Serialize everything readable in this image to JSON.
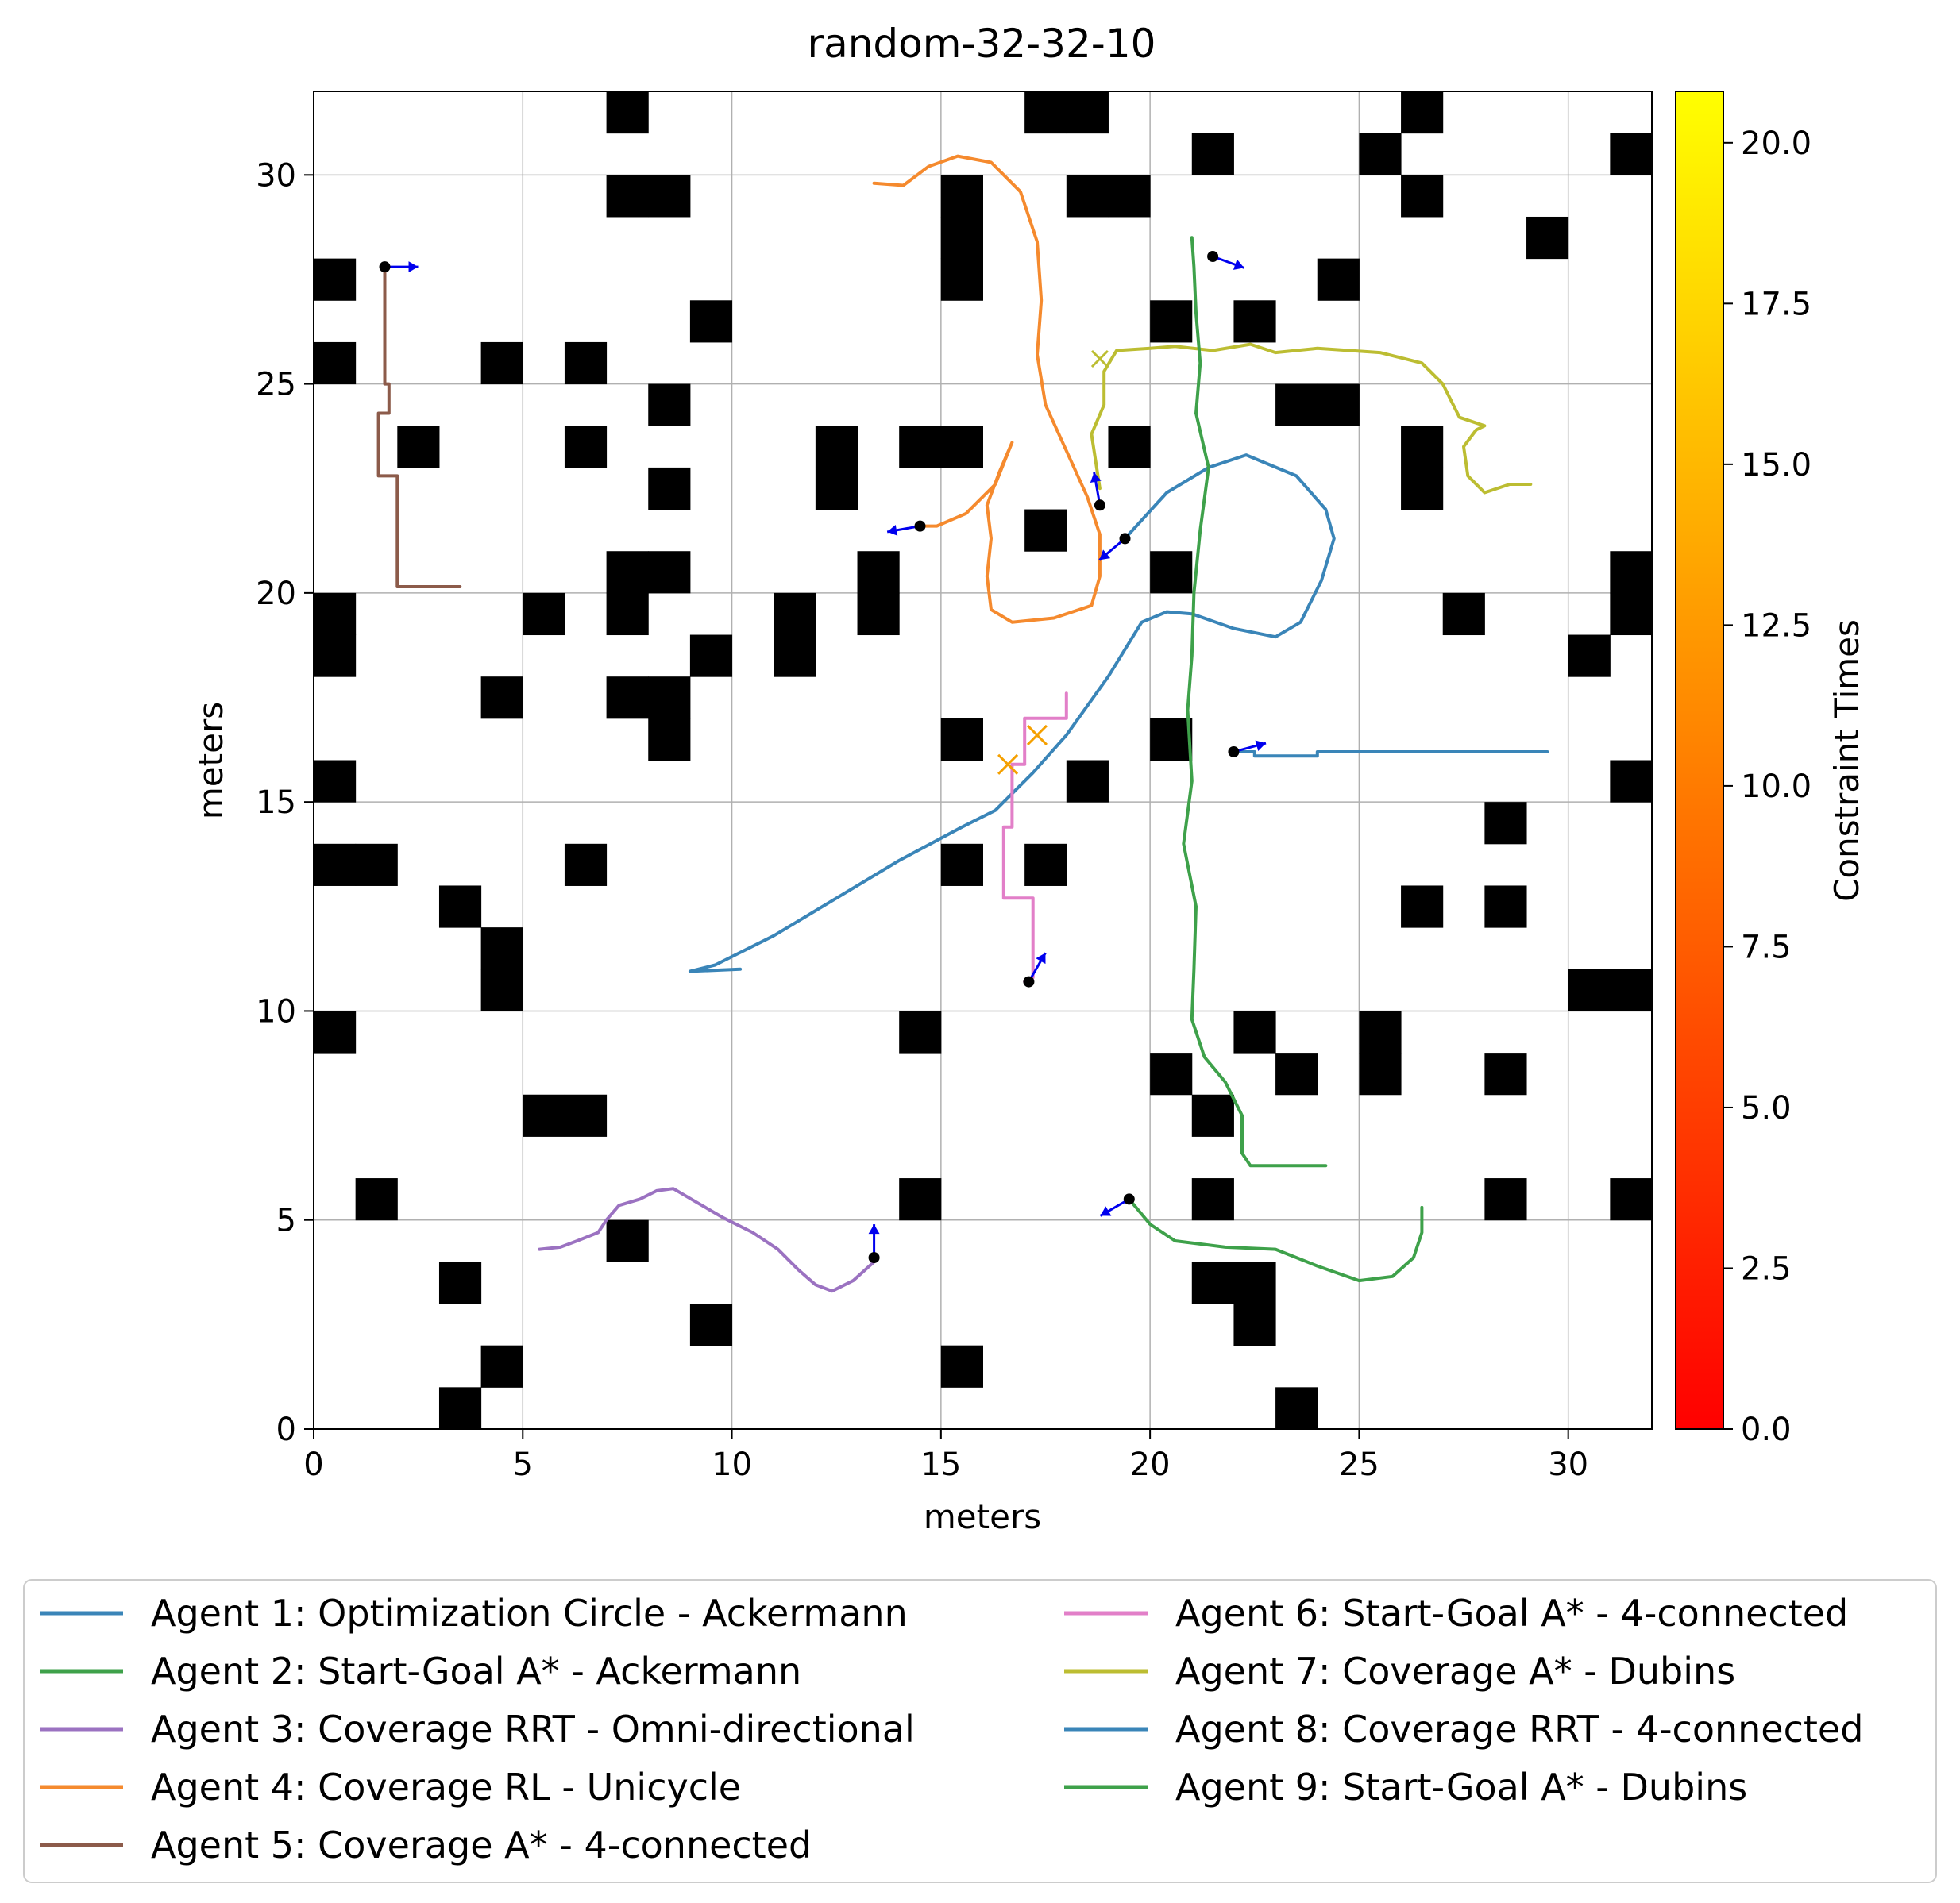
{
  "chart_data": {
    "type": "scatter",
    "title": "random-32-32-10",
    "xlabel": "meters",
    "ylabel": "meters",
    "xlim": [
      0,
      32
    ],
    "ylim": [
      0,
      32
    ],
    "grid": true,
    "x_ticks": [
      0,
      5,
      10,
      15,
      20,
      25,
      30
    ],
    "y_ticks": [
      0,
      5,
      10,
      15,
      20,
      25,
      30
    ],
    "obstacle_cells": [
      [
        7,
        31
      ],
      [
        17,
        31
      ],
      [
        18,
        31
      ],
      [
        26,
        31
      ],
      [
        21,
        30
      ],
      [
        25,
        30
      ],
      [
        31,
        30
      ],
      [
        7,
        29
      ],
      [
        8,
        29
      ],
      [
        15,
        29
      ],
      [
        18,
        29
      ],
      [
        19,
        29
      ],
      [
        26,
        29
      ],
      [
        15,
        28
      ],
      [
        29,
        28
      ],
      [
        0,
        27
      ],
      [
        15,
        27
      ],
      [
        24,
        27
      ],
      [
        9,
        26
      ],
      [
        20,
        26
      ],
      [
        22,
        26
      ],
      [
        0,
        25
      ],
      [
        4,
        25
      ],
      [
        6,
        25
      ],
      [
        8,
        24
      ],
      [
        23,
        24
      ],
      [
        24,
        24
      ],
      [
        2,
        23
      ],
      [
        6,
        23
      ],
      [
        12,
        23
      ],
      [
        14,
        23
      ],
      [
        15,
        23
      ],
      [
        19,
        23
      ],
      [
        26,
        23
      ],
      [
        8,
        22
      ],
      [
        12,
        22
      ],
      [
        26,
        22
      ],
      [
        17,
        21
      ],
      [
        7,
        20
      ],
      [
        8,
        20
      ],
      [
        13,
        20
      ],
      [
        20,
        20
      ],
      [
        31,
        20
      ],
      [
        0,
        19
      ],
      [
        5,
        19
      ],
      [
        7,
        19
      ],
      [
        11,
        19
      ],
      [
        13,
        19
      ],
      [
        27,
        19
      ],
      [
        31,
        19
      ],
      [
        0,
        18
      ],
      [
        9,
        18
      ],
      [
        11,
        18
      ],
      [
        30,
        18
      ],
      [
        4,
        17
      ],
      [
        7,
        17
      ],
      [
        8,
        17
      ],
      [
        8,
        16
      ],
      [
        15,
        16
      ],
      [
        20,
        16
      ],
      [
        0,
        15
      ],
      [
        18,
        15
      ],
      [
        31,
        15
      ],
      [
        28,
        14
      ],
      [
        0,
        13
      ],
      [
        1,
        13
      ],
      [
        6,
        13
      ],
      [
        15,
        13
      ],
      [
        17,
        13
      ],
      [
        3,
        12
      ],
      [
        26,
        12
      ],
      [
        28,
        12
      ],
      [
        4,
        11
      ],
      [
        4,
        10
      ],
      [
        30,
        10
      ],
      [
        31,
        10
      ],
      [
        0,
        9
      ],
      [
        14,
        9
      ],
      [
        22,
        9
      ],
      [
        25,
        9
      ],
      [
        20,
        8
      ],
      [
        23,
        8
      ],
      [
        25,
        8
      ],
      [
        28,
        8
      ],
      [
        5,
        7
      ],
      [
        6,
        7
      ],
      [
        21,
        7
      ],
      [
        1,
        5
      ],
      [
        14,
        5
      ],
      [
        21,
        5
      ],
      [
        28,
        5
      ],
      [
        31,
        5
      ],
      [
        7,
        4
      ],
      [
        3,
        3
      ],
      [
        21,
        3
      ],
      [
        22,
        3
      ],
      [
        9,
        2
      ],
      [
        22,
        2
      ],
      [
        4,
        1
      ],
      [
        15,
        1
      ],
      [
        3,
        0
      ],
      [
        23,
        0
      ]
    ],
    "series": [
      {
        "name": "Agent 1: Optimization Circle - Ackermann",
        "color": "#3a85b8",
        "points": [
          [
            10.2,
            11.0
          ],
          [
            9.0,
            10.95
          ],
          [
            9.6,
            11.1
          ],
          [
            11,
            11.8
          ],
          [
            12.5,
            12.7
          ],
          [
            14,
            13.6
          ],
          [
            15.5,
            14.4
          ],
          [
            16.3,
            14.8
          ],
          [
            17.2,
            15.7
          ],
          [
            18,
            16.6
          ],
          [
            19,
            18.0
          ],
          [
            19.8,
            19.3
          ],
          [
            20.4,
            19.55
          ],
          [
            21,
            19.5
          ],
          [
            22,
            19.15
          ],
          [
            23,
            18.95
          ],
          [
            23.6,
            19.3
          ],
          [
            24.1,
            20.3
          ],
          [
            24.4,
            21.3
          ],
          [
            24.2,
            22.0
          ],
          [
            23.5,
            22.8
          ],
          [
            22.3,
            23.3
          ],
          [
            21.4,
            23.0
          ],
          [
            20.4,
            22.4
          ],
          [
            19.4,
            21.3
          ]
        ]
      },
      {
        "name": "Agent 2: Start-Goal A* - Ackermann",
        "color": "#3ea14a",
        "points": [
          [
            19.5,
            5.5
          ],
          [
            20,
            4.9
          ],
          [
            20.6,
            4.5
          ],
          [
            21.8,
            4.35
          ],
          [
            23,
            4.3
          ],
          [
            24,
            3.9
          ],
          [
            25,
            3.55
          ],
          [
            25.8,
            3.65
          ],
          [
            26.3,
            4.1
          ],
          [
            26.5,
            4.7
          ],
          [
            26.5,
            5.3
          ]
        ]
      },
      {
        "name": "Agent 3: Coverage RRT - Omni-directional",
        "color": "#9b72c1",
        "points": [
          [
            5.4,
            4.3
          ],
          [
            5.9,
            4.35
          ],
          [
            6.3,
            4.5
          ],
          [
            6.8,
            4.7
          ],
          [
            7.0,
            5.0
          ],
          [
            7.3,
            5.35
          ],
          [
            7.8,
            5.5
          ],
          [
            8.2,
            5.7
          ],
          [
            8.6,
            5.75
          ],
          [
            9.2,
            5.4
          ],
          [
            9.8,
            5.05
          ],
          [
            10.5,
            4.7
          ],
          [
            11.1,
            4.3
          ],
          [
            11.6,
            3.8
          ],
          [
            12.0,
            3.45
          ],
          [
            12.4,
            3.3
          ],
          [
            12.9,
            3.55
          ],
          [
            13.4,
            4.0
          ]
        ]
      },
      {
        "name": "Agent 4: Coverage RL - Unicycle",
        "color": "#f58a2e",
        "points": [
          [
            13.4,
            29.8
          ],
          [
            14.1,
            29.75
          ],
          [
            14.7,
            30.2
          ],
          [
            15.4,
            30.45
          ],
          [
            16.2,
            30.3
          ],
          [
            16.9,
            29.6
          ],
          [
            17.3,
            28.4
          ],
          [
            17.4,
            27
          ],
          [
            17.3,
            25.7
          ],
          [
            17.5,
            24.5
          ],
          [
            18,
            23.4
          ],
          [
            18.5,
            22.3
          ],
          [
            18.8,
            21.4
          ],
          [
            18.8,
            20.4
          ],
          [
            18.6,
            19.7
          ],
          [
            17.7,
            19.4
          ],
          [
            16.7,
            19.3
          ],
          [
            16.2,
            19.6
          ],
          [
            16.1,
            20.4
          ],
          [
            16.2,
            21.3
          ],
          [
            16.1,
            22.1
          ],
          [
            16.4,
            22.9
          ],
          [
            16.7,
            23.6
          ],
          [
            16.3,
            22.6
          ],
          [
            15.6,
            21.9
          ],
          [
            14.9,
            21.6
          ],
          [
            14.6,
            21.6
          ]
        ]
      },
      {
        "name": "Agent 5: Coverage A* - 4-connected",
        "color": "#8c5b4a",
        "points": [
          [
            3.5,
            20.15
          ],
          [
            2.0,
            20.15
          ],
          [
            2.0,
            22.8
          ],
          [
            1.55,
            22.8
          ],
          [
            1.55,
            24.3
          ],
          [
            1.8,
            24.3
          ],
          [
            1.8,
            25.0
          ],
          [
            1.7,
            25.0
          ],
          [
            1.7,
            27.8
          ]
        ]
      },
      {
        "name": "Agent 6: Start-Goal A* - 4-connected",
        "color": "#e27fc8",
        "points": [
          [
            17.0,
            10.7
          ],
          [
            17.2,
            10.8
          ],
          [
            17.2,
            12.7
          ],
          [
            16.5,
            12.7
          ],
          [
            16.5,
            14.4
          ],
          [
            16.7,
            14.4
          ],
          [
            16.7,
            15.9
          ],
          [
            17.0,
            15.9
          ],
          [
            17.0,
            17.0
          ],
          [
            18.0,
            17.0
          ],
          [
            18.0,
            17.6
          ]
        ]
      },
      {
        "name": "Agent 7: Coverage A* - Dubins",
        "color": "#bcbd32",
        "points": [
          [
            29.1,
            22.6
          ],
          [
            28.6,
            22.6
          ],
          [
            28.0,
            22.4
          ],
          [
            27.6,
            22.8
          ],
          [
            27.5,
            23.5
          ],
          [
            27.8,
            23.9
          ],
          [
            28.0,
            24.0
          ],
          [
            27.4,
            24.2
          ],
          [
            27.0,
            25.0
          ],
          [
            26.5,
            25.5
          ],
          [
            25.5,
            25.75
          ],
          [
            24.0,
            25.85
          ],
          [
            23.0,
            25.75
          ],
          [
            22.4,
            25.95
          ],
          [
            21.5,
            25.8
          ],
          [
            20.6,
            25.9
          ],
          [
            20.0,
            25.85
          ],
          [
            19.2,
            25.8
          ],
          [
            18.9,
            25.3
          ],
          [
            18.9,
            24.5
          ],
          [
            18.6,
            23.8
          ],
          [
            18.8,
            22.5
          ]
        ]
      },
      {
        "name": "Agent 8: Coverage RRT - 4-connected",
        "color": "#3a85b8",
        "points": [
          [
            29.5,
            16.2
          ],
          [
            24.0,
            16.2
          ],
          [
            24.0,
            16.1
          ],
          [
            22.5,
            16.1
          ],
          [
            22.5,
            16.2
          ],
          [
            22.0,
            16.2
          ]
        ]
      },
      {
        "name": "Agent 9: Start-Goal A* - Dubins",
        "color": "#3ea14a",
        "points": [
          [
            24.2,
            6.3
          ],
          [
            22.4,
            6.3
          ],
          [
            22.2,
            6.6
          ],
          [
            22.2,
            7.5
          ],
          [
            21.8,
            8.3
          ],
          [
            21.3,
            8.9
          ],
          [
            21.0,
            9.8
          ],
          [
            21.05,
            11
          ],
          [
            21.1,
            12.5
          ],
          [
            20.8,
            14
          ],
          [
            21.0,
            15.5
          ],
          [
            20.9,
            17.2
          ],
          [
            21.0,
            18.5
          ],
          [
            21.05,
            20
          ],
          [
            21.2,
            21.5
          ],
          [
            21.4,
            23.0
          ],
          [
            21.1,
            24.3
          ],
          [
            21.2,
            25.5
          ],
          [
            21.1,
            26.7
          ],
          [
            21.05,
            27.8
          ],
          [
            21.0,
            28.5
          ]
        ]
      }
    ],
    "agent_positions": [
      [
        19.4,
        21.3
      ],
      [
        19.5,
        5.5
      ],
      [
        13.4,
        4.1
      ],
      [
        14.5,
        21.6
      ],
      [
        1.7,
        27.8
      ],
      [
        17.1,
        10.7
      ],
      [
        18.8,
        22.1
      ],
      [
        22.0,
        16.2
      ],
      [
        21.5,
        28.05
      ]
    ],
    "conflict_markers": [
      [
        16.6,
        15.9
      ],
      [
        17.3,
        16.6
      ]
    ],
    "start_markers": [
      [
        18.8,
        25.6
      ]
    ],
    "colorbar": {
      "label": "Constraint Times",
      "min": 0.0,
      "max": 20.8,
      "ticks": [
        "0.0",
        "2.5",
        "5.0",
        "7.5",
        "10.0",
        "12.5",
        "15.0",
        "17.5",
        "20.0"
      ],
      "tick_values": [
        0,
        2.5,
        5,
        7.5,
        10,
        12.5,
        15,
        17.5,
        20
      ],
      "colormap": [
        "#ff0000",
        "#ff8000",
        "#ffff00"
      ]
    },
    "legend_position": "bottom"
  }
}
